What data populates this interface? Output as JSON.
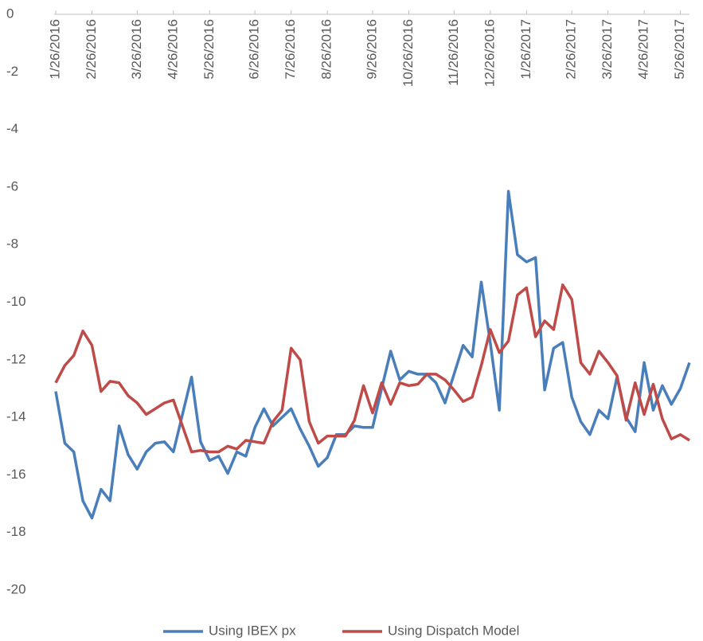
{
  "chart_data": {
    "type": "line",
    "categories": [
      "1/26/2016",
      null,
      null,
      null,
      "2/26/2016",
      null,
      null,
      null,
      null,
      "3/26/2016",
      null,
      null,
      null,
      "4/26/2016",
      null,
      null,
      null,
      "5/26/2016",
      null,
      null,
      null,
      null,
      "6/26/2016",
      null,
      null,
      null,
      "7/26/2016",
      null,
      null,
      null,
      "8/26/2016",
      null,
      null,
      null,
      null,
      "9/26/2016",
      null,
      null,
      null,
      "10/26/2016",
      null,
      null,
      null,
      null,
      "11/26/2016",
      null,
      null,
      null,
      "12/26/2016",
      null,
      null,
      null,
      "1/26/2017",
      null,
      null,
      null,
      null,
      "2/26/2017",
      null,
      null,
      null,
      "3/26/2017",
      null,
      null,
      null,
      "4/26/2017",
      null,
      null,
      null,
      "5/26/2017",
      null
    ],
    "series": [
      {
        "name": "Using IBEX px",
        "color": "#4a7ebb",
        "values": [
          -13.1,
          -14.9,
          -15.2,
          -16.9,
          -17.5,
          -16.5,
          -16.9,
          -14.3,
          -15.3,
          -15.8,
          -15.2,
          -14.9,
          -14.85,
          -15.2,
          -13.9,
          -12.6,
          -14.85,
          -15.5,
          -15.35,
          -15.95,
          -15.2,
          -15.35,
          -14.35,
          -13.7,
          -14.3,
          -14.0,
          -13.7,
          -14.4,
          -15.0,
          -15.7,
          -15.4,
          -14.6,
          -14.6,
          -14.3,
          -14.35,
          -14.35,
          -13.0,
          -11.7,
          -12.7,
          -12.4,
          -12.5,
          -12.5,
          -12.8,
          -13.5,
          -12.5,
          -11.5,
          -11.9,
          -9.3,
          -11.4,
          -13.75,
          -6.15,
          -8.35,
          -8.6,
          -8.45,
          -13.05,
          -11.6,
          -11.4,
          -13.3,
          -14.15,
          -14.6,
          -13.75,
          -14.05,
          -12.6,
          -14.0,
          -14.5,
          -12.1,
          -13.75,
          -12.9,
          -13.55,
          -13.0,
          -12.1
        ]
      },
      {
        "name": "Using Dispatch Model",
        "color": "#be4b48",
        "values": [
          -12.8,
          -12.2,
          -11.85,
          -11.0,
          -11.5,
          -13.1,
          -12.75,
          -12.8,
          -13.25,
          -13.5,
          -13.9,
          -13.7,
          -13.5,
          -13.4,
          -14.3,
          -15.2,
          -15.15,
          -15.2,
          -15.2,
          -15.0,
          -15.1,
          -14.8,
          -14.85,
          -14.9,
          -14.15,
          -13.75,
          -11.6,
          -12.0,
          -14.15,
          -14.9,
          -14.65,
          -14.65,
          -14.65,
          -14.1,
          -12.9,
          -13.85,
          -12.8,
          -13.55,
          -12.8,
          -12.9,
          -12.85,
          -12.5,
          -12.5,
          -12.7,
          -13.05,
          -13.45,
          -13.3,
          -12.2,
          -10.95,
          -11.75,
          -11.35,
          -9.75,
          -9.5,
          -11.2,
          -10.65,
          -10.95,
          -9.4,
          -9.9,
          -12.1,
          -12.5,
          -11.7,
          -12.1,
          -12.55,
          -14.1,
          -12.8,
          -13.9,
          -12.85,
          -14.05,
          -14.75,
          -14.6,
          -14.8
        ]
      }
    ],
    "ylim": [
      -20,
      0
    ],
    "yticks": [
      0,
      -2,
      -4,
      -6,
      -8,
      -10,
      -12,
      -14,
      -16,
      -18,
      -20
    ],
    "grid": false,
    "legend": "bottom"
  }
}
